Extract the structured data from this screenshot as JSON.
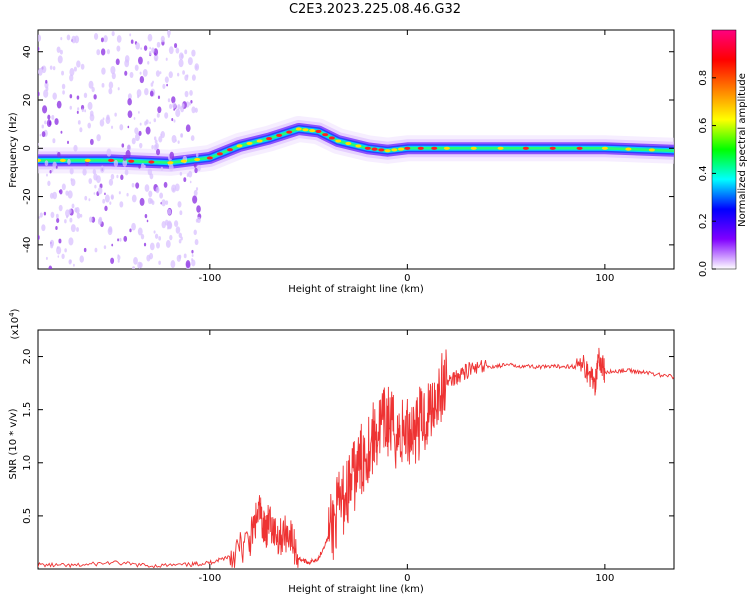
{
  "title": "C2E3.2023.225.08.46.G32",
  "chart_data": [
    {
      "type": "heatmap",
      "xlabel": "Height of straight line (km)",
      "ylabel": "Frequency (Hz)",
      "xlim": [
        -187,
        135
      ],
      "ylim": [
        -50,
        49
      ],
      "xticks": [
        -100,
        0,
        100
      ],
      "yticks": [
        -40,
        -20,
        0,
        20,
        40
      ],
      "colorbar": {
        "label": "Normalized spectral amplitude",
        "range": [
          0,
          1
        ],
        "ticks": [
          0.0,
          0.2,
          0.4,
          0.6,
          0.8
        ],
        "colors": [
          "#ffffff",
          "#8000ff",
          "#0000ff",
          "#00ffff",
          "#00ff00",
          "#ffff00",
          "#ff8000",
          "#ff0000",
          "#ff0080"
        ]
      },
      "ridge_color": "#0040ff",
      "ridge_points": [
        {
          "x": -187,
          "y": -5
        },
        {
          "x": -150,
          "y": -5
        },
        {
          "x": -120,
          "y": -6
        },
        {
          "x": -100,
          "y": -4
        },
        {
          "x": -85,
          "y": 1
        },
        {
          "x": -70,
          "y": 4
        },
        {
          "x": -55,
          "y": 8
        },
        {
          "x": -45,
          "y": 7
        },
        {
          "x": -35,
          "y": 3
        },
        {
          "x": -20,
          "y": 0
        },
        {
          "x": -10,
          "y": -1
        },
        {
          "x": 0,
          "y": 0
        },
        {
          "x": 20,
          "y": 0
        },
        {
          "x": 60,
          "y": 0
        },
        {
          "x": 100,
          "y": 0
        },
        {
          "x": 135,
          "y": -1
        }
      ]
    },
    {
      "type": "line",
      "xlabel": "Height of straight line (km)",
      "ylabel": "SNR (10 * v/v)",
      "yscale_note": "(x10",
      "yscale_exp": "4",
      "xlim": [
        -187,
        135
      ],
      "ylim": [
        0,
        2.25
      ],
      "xticks": [
        -100,
        0,
        100
      ],
      "yticks": [
        0.5,
        1.0,
        1.5,
        2.0
      ],
      "ytick_labels": [
        "0.5",
        "1.0",
        "1.5",
        "2.0"
      ],
      "color": "#ee3333",
      "series": [
        {
          "x": [
            -187,
            -170,
            -150,
            -130,
            -110,
            -100,
            -90,
            -80,
            -75,
            -72,
            -70,
            -65,
            -60,
            -55,
            -50,
            -45,
            -40,
            -35,
            -30,
            -25,
            -20,
            -15,
            -10,
            -5,
            0,
            5,
            10,
            15,
            20,
            25,
            30,
            40,
            50,
            60,
            70,
            80,
            90,
            95,
            97,
            100,
            110,
            120,
            135
          ],
          "y": [
            0.04,
            0.03,
            0.06,
            0.03,
            0.04,
            0.06,
            0.12,
            0.25,
            0.55,
            0.35,
            0.45,
            0.3,
            0.35,
            0.1,
            0.06,
            0.1,
            0.3,
            0.55,
            0.75,
            0.95,
            1.15,
            1.3,
            1.4,
            1.25,
            1.3,
            1.35,
            1.45,
            1.65,
            1.75,
            1.82,
            1.87,
            1.9,
            1.92,
            1.91,
            1.9,
            1.91,
            1.9,
            1.75,
            2.0,
            1.85,
            1.87,
            1.85,
            1.81
          ]
        }
      ]
    }
  ]
}
